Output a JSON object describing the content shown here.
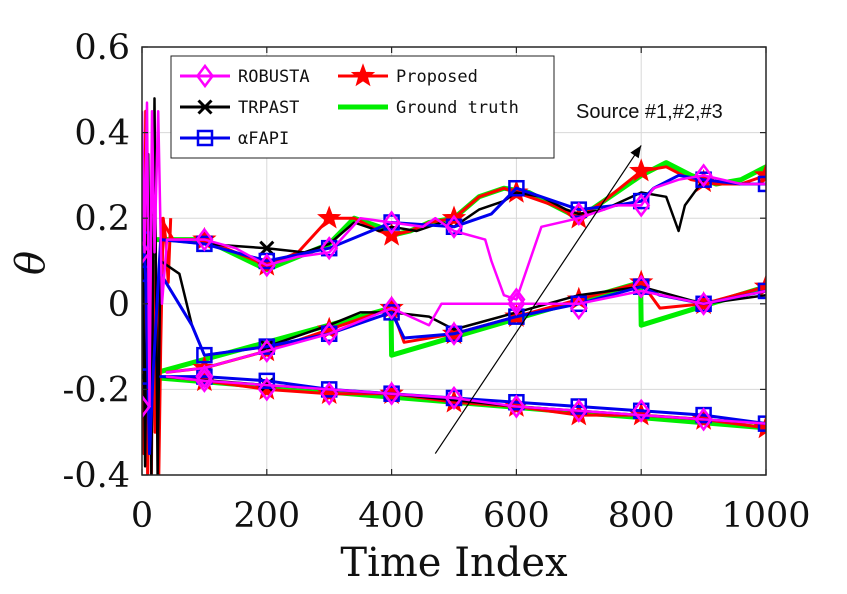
{
  "chart_data": {
    "type": "line",
    "title": "",
    "xlabel": "Time Index",
    "ylabel": "θ",
    "xlim": [
      0,
      1000
    ],
    "ylim": [
      -0.4,
      0.6
    ],
    "x_ticks": [
      0,
      200,
      400,
      600,
      800,
      1000
    ],
    "x_tick_labels": [
      "0",
      "200",
      "400",
      "600",
      "800",
      "1000"
    ],
    "y_ticks": [
      -0.4,
      -0.2,
      0,
      0.2,
      0.4,
      0.6
    ],
    "y_tick_labels": [
      "-0.4",
      "-0.2",
      "0",
      "0.2",
      "0.4",
      "0.6"
    ],
    "grid": true,
    "legend_position": "top-left",
    "annotation": {
      "text": "Source #1,#2,#3",
      "arrow_from": [
        470,
        -0.35
      ],
      "arrow_to": [
        800,
        0.37
      ]
    },
    "series": [
      {
        "name": "Ground truth",
        "label": "Ground truth",
        "color": "#00ee00",
        "marker": "none",
        "width": 5,
        "sources": [
          {
            "x": [
              0,
              30,
              100,
              200,
              300,
              340,
              380,
              400,
              430,
              460,
              500,
              540,
              580,
              620,
              660,
              700,
              740,
              800,
              840,
              880,
              920,
              960,
              1000
            ],
            "y": [
              0.15,
              0.15,
              0.15,
              0.08,
              0.14,
              0.2,
              0.18,
              0.16,
              0.17,
              0.19,
              0.2,
              0.25,
              0.27,
              0.26,
              0.23,
              0.2,
              0.24,
              0.3,
              0.33,
              0.3,
              0.28,
              0.29,
              0.32
            ]
          },
          {
            "x": [
              0,
              399,
              400,
              799,
              800,
              1000
            ],
            "y": [
              -0.17,
              -0.01,
              -0.12,
              0.05,
              -0.05,
              0.04
            ]
          },
          {
            "x": [
              0,
              1000
            ],
            "y": [
              -0.17,
              -0.29
            ]
          }
        ]
      },
      {
        "name": "Proposed",
        "label": "Proposed",
        "color": "#ff0000",
        "marker": "star",
        "width": 3,
        "marker_x": [
          0,
          100,
          200,
          300,
          400,
          500,
          600,
          700,
          800,
          900,
          1000
        ],
        "sources": [
          {
            "x": [
              30,
              50,
              100,
              150,
              200,
              250,
              300,
              340,
              380,
              400,
              430,
              460,
              500,
              540,
              580,
              600,
              620,
              660,
              700,
              740,
              800,
              840,
              880,
              920,
              960,
              1000
            ],
            "y": [
              0.2,
              0.15,
              0.15,
              0.12,
              0.09,
              0.12,
              0.2,
              0.2,
              0.17,
              0.16,
              0.17,
              0.19,
              0.2,
              0.25,
              0.27,
              0.26,
              0.25,
              0.23,
              0.2,
              0.24,
              0.31,
              0.32,
              0.29,
              0.28,
              0.28,
              0.3
            ]
          },
          {
            "x": [
              40,
              100,
              200,
              300,
              400,
              420,
              500,
              600,
              700,
              800,
              830,
              900,
              1000
            ],
            "y": [
              -0.16,
              -0.15,
              -0.11,
              -0.06,
              -0.01,
              -0.09,
              -0.07,
              -0.03,
              0.01,
              0.05,
              -0.01,
              0.0,
              0.04
            ]
          },
          {
            "x": [
              40,
              100,
              200,
              300,
              400,
              500,
              600,
              700,
              800,
              900,
              1000
            ],
            "y": [
              -0.17,
              -0.18,
              -0.2,
              -0.21,
              -0.21,
              -0.23,
              -0.24,
              -0.26,
              -0.26,
              -0.27,
              -0.29
            ]
          }
        ],
        "transient": {
          "x": [
            0,
            3,
            6,
            9,
            12,
            15,
            18,
            21,
            24,
            27,
            30,
            34,
            38,
            42,
            46
          ],
          "y": [
            0.03,
            -0.35,
            0.45,
            -0.4,
            0.2,
            -0.4,
            0.1,
            -0.3,
            0.05,
            -0.4,
            -0.1,
            0.2,
            0.15,
            0.05,
            0.2
          ]
        }
      },
      {
        "name": "TRPAST",
        "label": "TRPAST",
        "color": "#000000",
        "marker": "x",
        "width": 2.5,
        "marker_x": [
          0,
          200
        ],
        "sources": [
          {
            "x": [
              30,
              100,
              200,
              260,
              300,
              340,
              380,
              400,
              440,
              480,
              500,
              540,
              580,
              600,
              640,
              680,
              700,
              740,
              800,
              840,
              860,
              870,
              900,
              960,
              1000
            ],
            "y": [
              0.15,
              0.14,
              0.13,
              0.12,
              0.14,
              0.19,
              0.17,
              0.18,
              0.17,
              0.19,
              0.18,
              0.22,
              0.24,
              0.26,
              0.25,
              0.22,
              0.21,
              0.22,
              0.26,
              0.25,
              0.17,
              0.23,
              0.29,
              0.28,
              0.28
            ]
          },
          {
            "x": [
              30,
              60,
              80,
              100,
              200,
              300,
              350,
              400,
              460,
              500,
              600,
              700,
              800,
              900,
              1000
            ],
            "y": [
              0.1,
              0.07,
              -0.05,
              -0.12,
              -0.1,
              -0.05,
              -0.02,
              -0.02,
              -0.03,
              -0.06,
              -0.02,
              0.02,
              0.04,
              0.0,
              0.02
            ]
          },
          {
            "x": [
              30,
              200,
              400,
              600,
              800,
              1000
            ],
            "y": [
              -0.17,
              -0.19,
              -0.21,
              -0.24,
              -0.26,
              -0.28
            ]
          }
        ],
        "transient": {
          "x": [
            0,
            5,
            10,
            15,
            20,
            25,
            30
          ],
          "y": [
            0.31,
            -0.38,
            0.35,
            -0.4,
            0.48,
            -0.4,
            0.15
          ]
        }
      },
      {
        "name": "αFAPI",
        "label": "αFAPI",
        "color": "#0000ee",
        "marker": "square",
        "width": 3,
        "marker_x": [
          0,
          100,
          200,
          300,
          400,
          500,
          600,
          700,
          800,
          900,
          1000
        ],
        "sources": [
          {
            "x": [
              30,
              100,
              200,
              300,
              400,
              500,
              560,
              600,
              640,
              700,
              760,
              800,
              820,
              860,
              900,
              960,
              1000
            ],
            "y": [
              0.15,
              0.14,
              0.1,
              0.13,
              0.19,
              0.18,
              0.21,
              0.27,
              0.25,
              0.22,
              0.23,
              0.24,
              0.27,
              0.3,
              0.29,
              0.28,
              0.28
            ]
          },
          {
            "x": [
              30,
              80,
              100,
              200,
              300,
              400,
              420,
              500,
              600,
              700,
              800,
              830,
              900,
              1000
            ],
            "y": [
              0.07,
              -0.05,
              -0.12,
              -0.1,
              -0.07,
              -0.02,
              -0.08,
              -0.07,
              -0.03,
              0.0,
              0.04,
              0.02,
              0.0,
              0.03
            ]
          },
          {
            "x": [
              30,
              100,
              200,
              300,
              400,
              500,
              600,
              700,
              800,
              900,
              1000
            ],
            "y": [
              -0.17,
              -0.17,
              -0.18,
              -0.2,
              -0.21,
              -0.22,
              -0.23,
              -0.24,
              -0.25,
              -0.26,
              -0.28
            ]
          }
        ],
        "transient": {
          "x": [
            0,
            6,
            12,
            18,
            24,
            30
          ],
          "y": [
            0.22,
            0.06,
            -0.35,
            -0.16,
            0.0,
            0.15
          ]
        }
      },
      {
        "name": "ROBUSTA",
        "label": "ROBUSTA",
        "color": "#ff00ff",
        "marker": "diamond",
        "width": 2.5,
        "marker_x": [
          0,
          100,
          200,
          300,
          400,
          500,
          600,
          700,
          800,
          900
        ],
        "sources": [
          {
            "x": [
              40,
              100,
              150,
              200,
              250,
              300,
              350,
              400,
              450,
              470,
              500,
              550,
              560,
              580,
              600,
              640,
              700,
              760,
              800,
              820,
              860,
              900,
              960,
              1000
            ],
            "y": [
              0.15,
              0.15,
              0.13,
              0.09,
              0.11,
              0.12,
              0.2,
              0.19,
              0.18,
              0.2,
              0.17,
              0.15,
              0.1,
              0.02,
              0.01,
              0.18,
              0.2,
              0.23,
              0.23,
              0.27,
              0.29,
              0.3,
              0.28,
              0.28
            ]
          },
          {
            "x": [
              40,
              100,
              200,
              300,
              400,
              460,
              480,
              500,
              600,
              700,
              800,
              900,
              1000
            ],
            "y": [
              -0.16,
              -0.15,
              -0.11,
              -0.07,
              -0.01,
              -0.05,
              0.0,
              0.0,
              0.0,
              0.0,
              0.03,
              0.0,
              0.03
            ]
          },
          {
            "x": [
              40,
              100,
              200,
              300,
              400,
              500,
              600,
              700,
              800,
              900,
              1000
            ],
            "y": [
              -0.17,
              -0.18,
              -0.19,
              -0.2,
              -0.21,
              -0.22,
              -0.24,
              -0.25,
              -0.26,
              -0.27,
              -0.28
            ]
          }
        ],
        "marker_values": [
          [
            0.12,
            0.15,
            0.09,
            0.13,
            0.19,
            0.18,
            0.01,
            0.21,
            0.23,
            0.3
          ],
          [
            -0.24,
            -0.17,
            -0.11,
            -0.07,
            -0.01,
            -0.07,
            0.0,
            -0.01,
            0.04,
            0.0
          ],
          [
            -0.24,
            -0.18,
            -0.2,
            -0.21,
            -0.21,
            -0.22,
            -0.24,
            -0.25,
            -0.25,
            -0.27
          ]
        ],
        "transient": {
          "x": [
            0,
            4,
            8,
            12,
            16,
            20,
            26,
            32,
            40
          ],
          "y": [
            0.45,
            0.12,
            0.47,
            -0.24,
            0.45,
            0.12,
            0.45,
            0.0,
            0.15
          ]
        }
      }
    ],
    "legend": [
      {
        "label": "ROBUSTA",
        "color": "#ff00ff",
        "marker": "diamond"
      },
      {
        "label": "Proposed",
        "color": "#ff0000",
        "marker": "star"
      },
      {
        "label": "TRPAST",
        "color": "#000000",
        "marker": "x"
      },
      {
        "label": "Ground truth",
        "color": "#00ee00",
        "marker": "none"
      },
      {
        "label": "αFAPI",
        "color": "#0000ee",
        "marker": "square"
      }
    ]
  }
}
